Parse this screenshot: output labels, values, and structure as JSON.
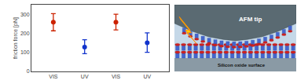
{
  "chart_data": {
    "type": "scatter",
    "ylabel": "friction force [pN]",
    "categories": [
      "VIS",
      "UV",
      "VIS",
      "UV"
    ],
    "values": [
      258,
      128,
      258,
      150
    ],
    "error_upper": [
      45,
      38,
      42,
      52
    ],
    "error_lower": [
      45,
      35,
      40,
      50
    ],
    "colors": [
      "#cc2200",
      "#1133cc",
      "#cc2200",
      "#1133cc"
    ],
    "ylim": [
      0,
      350
    ],
    "yticks": [
      0,
      100,
      200,
      300
    ],
    "grid": false,
    "annotations": [
      {
        "text": "AFM tip"
      },
      {
        "text": "Silicon oxide surface"
      }
    ]
  }
}
